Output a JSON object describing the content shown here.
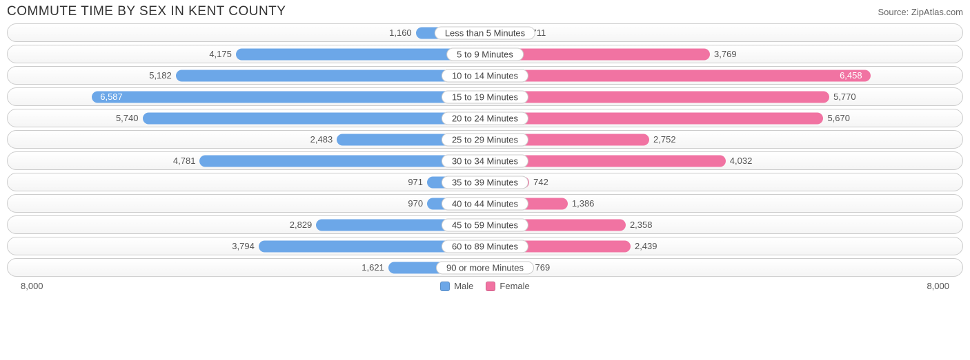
{
  "title": "COMMUTE TIME BY SEX IN KENT COUNTY",
  "source": "Source: ZipAtlas.com",
  "axis_max": 8000,
  "axis_label": "8,000",
  "colors": {
    "male": "#6ca7e8",
    "female": "#f173a2",
    "row_border": "#cccccc",
    "label_text": "#555555",
    "background": "#ffffff"
  },
  "legend": [
    {
      "name": "Male",
      "color": "#6ca7e8"
    },
    {
      "name": "Female",
      "color": "#f173a2"
    }
  ],
  "label_inside_threshold": 6000,
  "rows": [
    {
      "category": "Less than 5 Minutes",
      "male": 1160,
      "male_label": "1,160",
      "female": 711,
      "female_label": "711"
    },
    {
      "category": "5 to 9 Minutes",
      "male": 4175,
      "male_label": "4,175",
      "female": 3769,
      "female_label": "3,769"
    },
    {
      "category": "10 to 14 Minutes",
      "male": 5182,
      "male_label": "5,182",
      "female": 6458,
      "female_label": "6,458"
    },
    {
      "category": "15 to 19 Minutes",
      "male": 6587,
      "male_label": "6,587",
      "female": 5770,
      "female_label": "5,770"
    },
    {
      "category": "20 to 24 Minutes",
      "male": 5740,
      "male_label": "5,740",
      "female": 5670,
      "female_label": "5,670"
    },
    {
      "category": "25 to 29 Minutes",
      "male": 2483,
      "male_label": "2,483",
      "female": 2752,
      "female_label": "2,752"
    },
    {
      "category": "30 to 34 Minutes",
      "male": 4781,
      "male_label": "4,781",
      "female": 4032,
      "female_label": "4,032"
    },
    {
      "category": "35 to 39 Minutes",
      "male": 971,
      "male_label": "971",
      "female": 742,
      "female_label": "742"
    },
    {
      "category": "40 to 44 Minutes",
      "male": 970,
      "male_label": "970",
      "female": 1386,
      "female_label": "1,386"
    },
    {
      "category": "45 to 59 Minutes",
      "male": 2829,
      "male_label": "2,829",
      "female": 2358,
      "female_label": "2,358"
    },
    {
      "category": "60 to 89 Minutes",
      "male": 3794,
      "male_label": "3,794",
      "female": 2439,
      "female_label": "2,439"
    },
    {
      "category": "90 or more Minutes",
      "male": 1621,
      "male_label": "1,621",
      "female": 769,
      "female_label": "769"
    }
  ]
}
